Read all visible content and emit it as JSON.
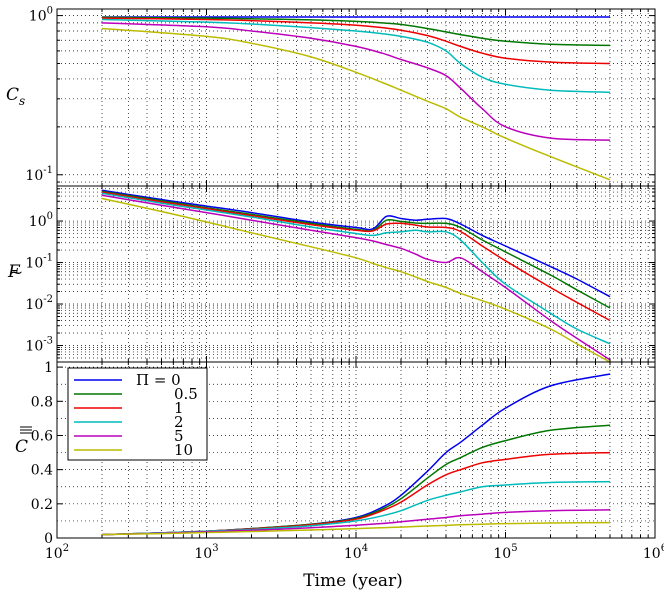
{
  "chart_data": [
    {
      "type": "line",
      "id": "cs",
      "ylabel": "C_s",
      "xscale": "log",
      "yscale": "log",
      "xlim": [
        100,
        1000000
      ],
      "ylim": [
        0.085,
        1.1
      ],
      "yticks": [
        {
          "v": 1,
          "base": "10",
          "exp": "0"
        },
        {
          "v": 0.1,
          "base": "10",
          "exp": "-1"
        }
      ],
      "x": [
        200,
        1000,
        2000,
        5000,
        10000,
        15000,
        20000,
        30000,
        40000,
        50000,
        70000,
        100000,
        200000,
        500000
      ],
      "series": [
        {
          "name": "Π = 0",
          "color": "#0000ee",
          "values": [
            0.98,
            0.98,
            0.98,
            0.98,
            0.98,
            0.98,
            0.98,
            0.98,
            0.98,
            0.98,
            0.98,
            0.98,
            0.98,
            0.98
          ]
        },
        {
          "name": "0.5",
          "color": "#007700",
          "values": [
            0.975,
            0.965,
            0.955,
            0.94,
            0.92,
            0.9,
            0.88,
            0.83,
            0.79,
            0.76,
            0.72,
            0.69,
            0.66,
            0.65
          ]
        },
        {
          "name": "1",
          "color": "#ee0000",
          "values": [
            0.965,
            0.945,
            0.93,
            0.9,
            0.87,
            0.84,
            0.81,
            0.75,
            0.69,
            0.64,
            0.58,
            0.54,
            0.51,
            0.5
          ]
        },
        {
          "name": "2",
          "color": "#00bbbb",
          "values": [
            0.945,
            0.91,
            0.885,
            0.84,
            0.8,
            0.77,
            0.74,
            0.68,
            0.6,
            0.5,
            0.41,
            0.37,
            0.34,
            0.33
          ]
        },
        {
          "name": "5",
          "color": "#bb00bb",
          "values": [
            0.9,
            0.85,
            0.8,
            0.72,
            0.64,
            0.58,
            0.53,
            0.47,
            0.42,
            0.35,
            0.26,
            0.2,
            0.17,
            0.165
          ]
        },
        {
          "name": "10",
          "color": "#bbbb00",
          "values": [
            0.83,
            0.74,
            0.67,
            0.55,
            0.44,
            0.38,
            0.34,
            0.29,
            0.26,
            0.23,
            0.2,
            0.17,
            0.13,
            0.093
          ]
        }
      ]
    },
    {
      "type": "line",
      "id": "f",
      "ylabel": "F~",
      "xscale": "log",
      "yscale": "log",
      "xlim": [
        100,
        1000000
      ],
      "ylim": [
        0.0004,
        7
      ],
      "yticks": [
        {
          "v": 1,
          "base": "10",
          "exp": "0"
        },
        {
          "v": 0.1,
          "base": "10",
          "exp": "-1"
        },
        {
          "v": 0.01,
          "base": "10",
          "exp": "-2"
        },
        {
          "v": 0.001,
          "base": "10",
          "exp": "-3"
        }
      ],
      "x": [
        200,
        500,
        1000,
        2000,
        5000,
        10000,
        13000,
        16000,
        20000,
        25000,
        30000,
        40000,
        50000,
        70000,
        100000,
        200000,
        300000,
        500000
      ],
      "series": [
        {
          "name": "Π = 0",
          "color": "#0000ee",
          "values": [
            5.5,
            3.3,
            2.3,
            1.6,
            0.95,
            0.7,
            0.65,
            1.3,
            1.15,
            1.05,
            1.1,
            1.15,
            0.85,
            0.45,
            0.25,
            0.08,
            0.04,
            0.015
          ]
        },
        {
          "name": "0.5",
          "color": "#007700",
          "values": [
            5.2,
            3.1,
            2.1,
            1.45,
            0.88,
            0.63,
            0.6,
            1.05,
            0.98,
            0.9,
            0.88,
            0.88,
            0.7,
            0.35,
            0.18,
            0.05,
            0.022,
            0.008
          ]
        },
        {
          "name": "1",
          "color": "#ee0000",
          "values": [
            5.0,
            2.9,
            2.0,
            1.35,
            0.82,
            0.6,
            0.58,
            0.85,
            0.88,
            0.8,
            0.72,
            0.7,
            0.56,
            0.25,
            0.11,
            0.025,
            0.011,
            0.004
          ]
        },
        {
          "name": "2",
          "color": "#00bbbb",
          "values": [
            4.7,
            2.7,
            1.85,
            1.25,
            0.72,
            0.5,
            0.45,
            0.52,
            0.55,
            0.6,
            0.55,
            0.55,
            0.35,
            0.1,
            0.03,
            0.006,
            0.0025,
            0.0011
          ]
        },
        {
          "name": "5",
          "color": "#bb00bb",
          "values": [
            4.2,
            2.4,
            1.6,
            1.05,
            0.6,
            0.4,
            0.33,
            0.27,
            0.22,
            0.16,
            0.12,
            0.1,
            0.13,
            0.06,
            0.025,
            0.004,
            0.0015,
            0.00045
          ]
        },
        {
          "name": "10",
          "color": "#bbbb00",
          "values": [
            3.5,
            1.7,
            0.95,
            0.52,
            0.24,
            0.13,
            0.095,
            0.075,
            0.06,
            0.045,
            0.035,
            0.025,
            0.018,
            0.012,
            0.0075,
            0.0025,
            0.0011,
            0.0004
          ]
        }
      ]
    },
    {
      "type": "line",
      "id": "c",
      "ylabel": "C=",
      "xlabel": "Time (year)",
      "xscale": "log",
      "yscale": "linear",
      "xlim": [
        100,
        1000000
      ],
      "ylim": [
        0,
        1.03
      ],
      "yticks": [
        {
          "v": 0,
          "text": "0"
        },
        {
          "v": 0.2,
          "text": "0.2"
        },
        {
          "v": 0.4,
          "text": "0.4"
        },
        {
          "v": 0.6,
          "text": "0.6"
        },
        {
          "v": 0.8,
          "text": "0.8"
        },
        {
          "v": 1,
          "text": "1"
        }
      ],
      "xticks": [
        {
          "v": 100,
          "base": "10",
          "exp": "2"
        },
        {
          "v": 1000,
          "base": "10",
          "exp": "3"
        },
        {
          "v": 10000,
          "base": "10",
          "exp": "4"
        },
        {
          "v": 100000,
          "base": "10",
          "exp": "5"
        },
        {
          "v": 1000000,
          "base": "10",
          "exp": "6"
        }
      ],
      "x": [
        200,
        500,
        1000,
        2000,
        5000,
        10000,
        15000,
        20000,
        30000,
        40000,
        50000,
        70000,
        100000,
        200000,
        500000
      ],
      "series": [
        {
          "name": "Π = 0",
          "color": "#0000ee",
          "values": [
            0.02,
            0.03,
            0.04,
            0.055,
            0.08,
            0.12,
            0.18,
            0.25,
            0.39,
            0.5,
            0.56,
            0.66,
            0.76,
            0.89,
            0.96
          ]
        },
        {
          "name": "0.5",
          "color": "#007700",
          "values": [
            0.02,
            0.03,
            0.04,
            0.055,
            0.08,
            0.115,
            0.17,
            0.23,
            0.35,
            0.43,
            0.47,
            0.53,
            0.57,
            0.63,
            0.66
          ]
        },
        {
          "name": "1",
          "color": "#ee0000",
          "values": [
            0.02,
            0.03,
            0.04,
            0.053,
            0.078,
            0.11,
            0.16,
            0.21,
            0.31,
            0.37,
            0.4,
            0.44,
            0.46,
            0.49,
            0.5
          ]
        },
        {
          "name": "2",
          "color": "#00bbbb",
          "values": [
            0.02,
            0.03,
            0.04,
            0.05,
            0.072,
            0.1,
            0.13,
            0.16,
            0.22,
            0.25,
            0.27,
            0.3,
            0.31,
            0.325,
            0.33
          ]
        },
        {
          "name": "5",
          "color": "#bb00bb",
          "values": [
            0.02,
            0.028,
            0.036,
            0.045,
            0.06,
            0.075,
            0.085,
            0.095,
            0.11,
            0.12,
            0.13,
            0.14,
            0.15,
            0.16,
            0.165
          ]
        },
        {
          "name": "10",
          "color": "#bbbb00",
          "values": [
            0.02,
            0.026,
            0.032,
            0.038,
            0.047,
            0.055,
            0.06,
            0.064,
            0.07,
            0.074,
            0.077,
            0.081,
            0.084,
            0.088,
            0.09
          ]
        }
      ]
    }
  ],
  "legend": {
    "location": "upper-left of bottom panel",
    "items": [
      {
        "prefix": "Π = ",
        "label": "0",
        "color": "#0000ee"
      },
      {
        "prefix": "",
        "label": "0.5",
        "color": "#007700"
      },
      {
        "prefix": "",
        "label": "1",
        "color": "#ee0000"
      },
      {
        "prefix": "",
        "label": "2",
        "color": "#00bbbb"
      },
      {
        "prefix": "",
        "label": "5",
        "color": "#bb00bb"
      },
      {
        "prefix": "",
        "label": "10",
        "color": "#bbbb00"
      }
    ]
  },
  "labels": {
    "ylabel_cs_main": "C",
    "ylabel_cs_sub": "s",
    "ylabel_f": "F",
    "ylabel_f_accent": "~",
    "ylabel_c": "C",
    "xlabel": "Time (year)"
  }
}
